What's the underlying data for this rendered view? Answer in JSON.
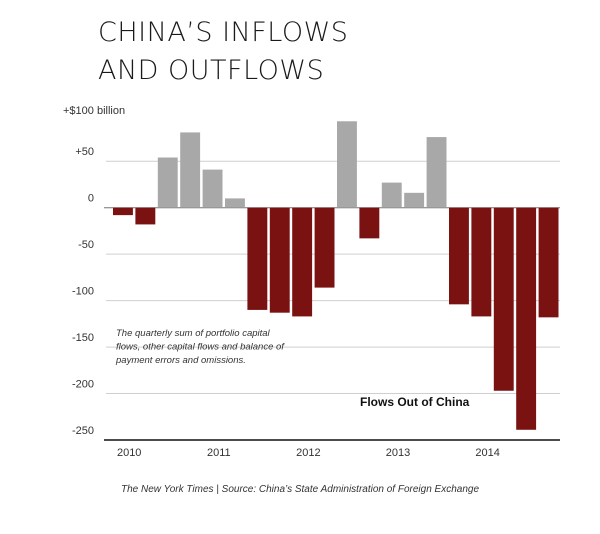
{
  "chart_data": {
    "type": "bar",
    "title_lines": [
      "CHINA’S INFLOWS",
      "AND OUTFLOWS"
    ],
    "ylabel": "+$100 billion",
    "ylim": [
      -250,
      75
    ],
    "yticks": [
      50,
      0,
      -50,
      -100,
      -150,
      -200,
      -250
    ],
    "ytick_labels": [
      "+50",
      "0",
      "-50",
      "-100",
      "-150",
      "-200",
      "-250"
    ],
    "xtick_labels": [
      "2010",
      "2011",
      "2012",
      "2013",
      "2014"
    ],
    "xtick_quarter_index": [
      0,
      4,
      8,
      12,
      16
    ],
    "inflow_color": "#a8a8a8",
    "outflow_color": "#7a1212",
    "quarters": [
      "2010 Q1",
      "2010 Q2",
      "2010 Q3",
      "2010 Q4",
      "2011 Q1",
      "2011 Q2",
      "2011 Q3",
      "2011 Q4",
      "2012 Q1",
      "2012 Q2",
      "2012 Q3",
      "2012 Q4",
      "2013 Q1",
      "2013 Q2",
      "2013 Q3",
      "2013 Q4",
      "2014 Q1",
      "2014 Q2",
      "2014 Q3",
      "2014 Q4"
    ],
    "values": [
      -8,
      -18,
      54,
      81,
      41,
      10,
      -110,
      -113,
      -117,
      -86,
      93,
      -33,
      27,
      16,
      76,
      -104,
      -117,
      -197,
      -239,
      -118
    ],
    "annotation": "The quarterly sum of portfolio capital flows, other capital flows and balance of payment errors and omissions.",
    "series_label": "Flows Out of China"
  },
  "source": "The New York Times | Source: China’s State Administration of Foreign Exchange"
}
